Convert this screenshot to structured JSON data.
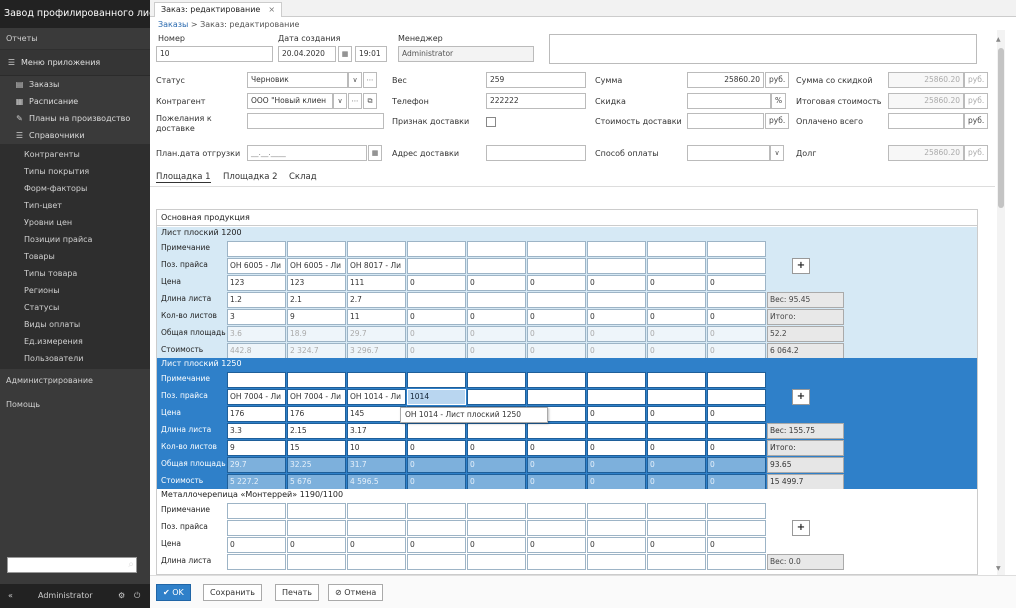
{
  "app_title": "Завод профилированного листа",
  "sidebar": {
    "reports": "Отчеты",
    "app_menu": "Меню приложения",
    "items": [
      {
        "label": "Заказы",
        "icon": "document-icon"
      },
      {
        "label": "Расписание",
        "icon": "calendar-icon"
      },
      {
        "label": "Планы на производство",
        "icon": "wrench-icon"
      },
      {
        "label": "Справочники",
        "icon": "list-icon"
      }
    ],
    "reference_items": [
      "Контрагенты",
      "Типы покрытия",
      "Форм-факторы",
      "Тип-цвет",
      "Уровни цен",
      "Позиции прайса",
      "Товары",
      "Типы товара",
      "Регионы",
      "Статусы",
      "Виды оплаты",
      "Ед.измерения",
      "Пользователи"
    ],
    "admin": "Администрирование",
    "help": "Помощь",
    "footer_user": "Administrator"
  },
  "tab": {
    "label": "Заказ: редактирование",
    "close": "×"
  },
  "breadcrumb": {
    "root": "Заказы",
    "sep": " > ",
    "current": "Заказ: редактирование"
  },
  "header": {
    "number_label": "Номер",
    "number": "10",
    "created_label": "Дата создания",
    "created_date": "20.04.2020",
    "created_time": "19:01",
    "manager_label": "Менеджер",
    "manager": "Administrator"
  },
  "form": {
    "status_label": "Статус",
    "status": "Черновик",
    "weight_label": "Вес",
    "weight": "259",
    "sum_label": "Сумма",
    "sum": "25860.20",
    "currency": "руб.",
    "sum_discount_label": "Сумма со скидкой",
    "sum_discount": "25860.20",
    "contractor_label": "Контрагент",
    "contractor": "ООО \"Новый клиен",
    "phone_label": "Телефон",
    "phone": "222222",
    "discount_label": "Скидка",
    "percent": "%",
    "total_label": "Итоговая стоимость",
    "total": "25860.20",
    "wishes_label": "Пожелания к доставке",
    "delivery_flag_label": "Признак доставки",
    "delivery_cost_label": "Стоимость доставки",
    "paid_label": "Оплачено всего",
    "ship_date_label": "План.дата отгрузки",
    "ship_date_placeholder": "__.__.____",
    "address_label": "Адрес доставки",
    "payment_label": "Способ оплаты",
    "debt_label": "Долг",
    "debt": "25860.20"
  },
  "subtabs": [
    "Площадка 1",
    "Площадка 2",
    "Склад"
  ],
  "grid": {
    "title": "Основная продукция",
    "row_labels": [
      "Примечание",
      "Поз. прайса",
      "Цена",
      "Длина листа",
      "Кол-во листов",
      "Общая площадь",
      "Стоимость"
    ],
    "blocks": [
      {
        "title": "Лист плоский 1200",
        "price_pos": [
          "ОН 6005 - Ли",
          "ОН 6005 - Ли",
          "ОН 8017 - Ли",
          "",
          "",
          "",
          "",
          "",
          ""
        ],
        "price": [
          "123",
          "123",
          "111",
          "0",
          "0",
          "0",
          "0",
          "0",
          "0"
        ],
        "length": [
          "1.2",
          "2.1",
          "2.7",
          "",
          "",
          "",
          "",
          "",
          ""
        ],
        "qty": [
          "3",
          "9",
          "11",
          "0",
          "0",
          "0",
          "0",
          "0",
          "0"
        ],
        "area": [
          "3.6",
          "18.9",
          "29.7",
          "0",
          "0",
          "0",
          "0",
          "0",
          "0"
        ],
        "cost": [
          "442.8",
          "2 324.7",
          "3 296.7",
          "0",
          "0",
          "0",
          "0",
          "0",
          "0"
        ],
        "summary": [
          "Вес: 95.45",
          "Итого:",
          "52.2",
          "6 064.2"
        ]
      },
      {
        "title": "Лист плоский 1250",
        "price_pos": [
          "ОН 7004 - Ли",
          "ОН 7004 - Ли",
          "ОН 1014 - Ли",
          "1014",
          "",
          "",
          "",
          "",
          ""
        ],
        "price": [
          "176",
          "176",
          "145",
          "",
          "",
          "0",
          "0",
          "0",
          "0"
        ],
        "length": [
          "3.3",
          "2.15",
          "3.17",
          "",
          "",
          "",
          "",
          "",
          ""
        ],
        "qty": [
          "9",
          "15",
          "10",
          "0",
          "0",
          "0",
          "0",
          "0",
          "0"
        ],
        "area": [
          "29.7",
          "32.25",
          "31.7",
          "0",
          "0",
          "0",
          "0",
          "0",
          "0"
        ],
        "cost": [
          "5 227.2",
          "5 676",
          "4 596.5",
          "0",
          "0",
          "0",
          "0",
          "0",
          "0"
        ],
        "summary": [
          "Вес: 155.75",
          "Итого:",
          "93.65",
          "15 499.7"
        ],
        "dropdown": "ОН 1014 - Лист плоский 1250"
      },
      {
        "title": "Металлочерепица «Монтеррей» 1190/1100",
        "price": [
          "0",
          "0",
          "0",
          "0",
          "0",
          "0",
          "0",
          "0",
          "0"
        ],
        "summary": [
          "Вес: 0.0"
        ]
      }
    ],
    "plus": "+"
  },
  "buttons": {
    "ok": "OK",
    "save": "Сохранить",
    "print": "Печать",
    "cancel": "Отмена"
  }
}
